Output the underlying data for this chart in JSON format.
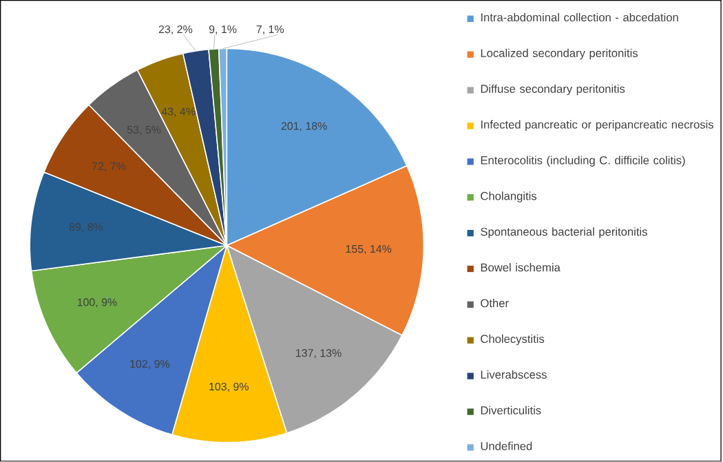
{
  "chart_data": {
    "type": "pie",
    "categories": [
      "Intra-abdominal collection - abcedation",
      "Localized secondary peritonitis",
      "Diffuse secondary peritonitis",
      "Infected pancreatic or peripancreatic necrosis",
      "Enterocolitis (including C. difficile colitis)",
      "Cholangitis",
      "Spontaneous bacterial peritonitis",
      "Bowel ischemia",
      "Other",
      "Cholecystitis",
      "Liverabscess",
      "Diverticulitis",
      "Undefined"
    ],
    "values": [
      201,
      155,
      137,
      103,
      102,
      100,
      89,
      72,
      53,
      43,
      23,
      9,
      7
    ],
    "value_labels": [
      "201, 18%",
      "155, 14%",
      "137, 13%",
      "103, 9%",
      "102, 9%",
      "100, 9%",
      "89, 8%",
      "72, 7%",
      "53, 5%",
      "43, 4%",
      "23, 2%",
      "9, 1%",
      "7, 1%"
    ],
    "colors": [
      "#5b9bd5",
      "#ed7d31",
      "#a5a5a5",
      "#ffc000",
      "#4472c4",
      "#70ad47",
      "#255e91",
      "#9e480e",
      "#636363",
      "#997300",
      "#264478",
      "#43682b",
      "#7cafdd"
    ],
    "legend": "right"
  }
}
